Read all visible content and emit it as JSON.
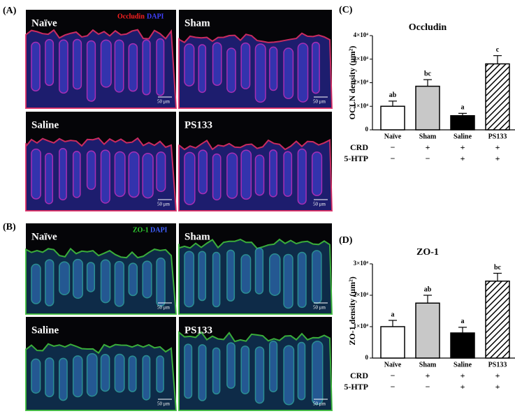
{
  "panels": [
    {
      "tag": "(A)",
      "stains": [
        "Occludin",
        "DAPI"
      ],
      "images": [
        {
          "label": "Naïve",
          "scale": "50 μm"
        },
        {
          "label": "Sham",
          "scale": "50 μm"
        },
        {
          "label": "Saline",
          "scale": "50 μm"
        },
        {
          "label": "PS133",
          "scale": "50 μm"
        }
      ]
    },
    {
      "tag": "(B)",
      "stains": [
        "ZO-1",
        "DAPI"
      ],
      "images": [
        {
          "label": "Naïve",
          "scale": "50 μm"
        },
        {
          "label": "Sham",
          "scale": "50 μm"
        },
        {
          "label": "Saline",
          "scale": "50 μm"
        },
        {
          "label": "PS133",
          "scale": "50 μm"
        }
      ]
    }
  ],
  "chart_data": [
    {
      "type": "bar",
      "tag": "(C)",
      "title": "Occludin",
      "y_label": "OCLN density (μm²)",
      "categories": [
        "Naïve",
        "Sham",
        "Saline",
        "PS133"
      ],
      "values": [
        10000,
        18500,
        6000,
        28000
      ],
      "errors": [
        2200,
        2800,
        1000,
        3500
      ],
      "letters": [
        "ab",
        "bc",
        "a",
        "c"
      ],
      "colors": [
        "#ffffff",
        "#c8c8c8",
        "#000000",
        "#ffffff"
      ],
      "hatch": [
        false,
        false,
        false,
        true
      ],
      "ylim": [
        0,
        40000
      ],
      "yticks": [
        0,
        {
          "value": 10000,
          "label": "1×10⁴"
        },
        {
          "value": 20000,
          "label": "2×10⁴"
        },
        {
          "value": 30000,
          "label": "3×10⁴"
        },
        {
          "value": 40000,
          "label": "4×10⁴"
        }
      ],
      "conditions": [
        {
          "label": "CRD",
          "marks": [
            "−",
            "+",
            "+",
            "+"
          ]
        },
        {
          "label": "5-HTP",
          "marks": [
            "−",
            "−",
            "+",
            "+"
          ]
        }
      ]
    },
    {
      "type": "bar",
      "tag": "(D)",
      "title": "ZO-1",
      "y_label": "ZO-1 density (μm²)",
      "categories": [
        "Naïve",
        "Sham",
        "Saline",
        "PS133"
      ],
      "values": [
        10000,
        17500,
        8000,
        24500
      ],
      "errors": [
        2000,
        2500,
        1800,
        2500
      ],
      "letters": [
        "a",
        "ab",
        "a",
        "bc"
      ],
      "colors": [
        "#ffffff",
        "#c8c8c8",
        "#000000",
        "#ffffff"
      ],
      "hatch": [
        false,
        false,
        false,
        true
      ],
      "ylim": [
        0,
        30000
      ],
      "yticks": [
        0,
        {
          "value": 10000,
          "label": "1×10⁴"
        },
        {
          "value": 20000,
          "label": "2×10⁴"
        },
        {
          "value": 30000,
          "label": "3×10⁴"
        }
      ],
      "conditions": [
        {
          "label": "CRD",
          "marks": [
            "−",
            "+",
            "+",
            "+"
          ]
        },
        {
          "label": "5-HTP",
          "marks": [
            "−",
            "−",
            "+",
            "+"
          ]
        }
      ]
    }
  ]
}
